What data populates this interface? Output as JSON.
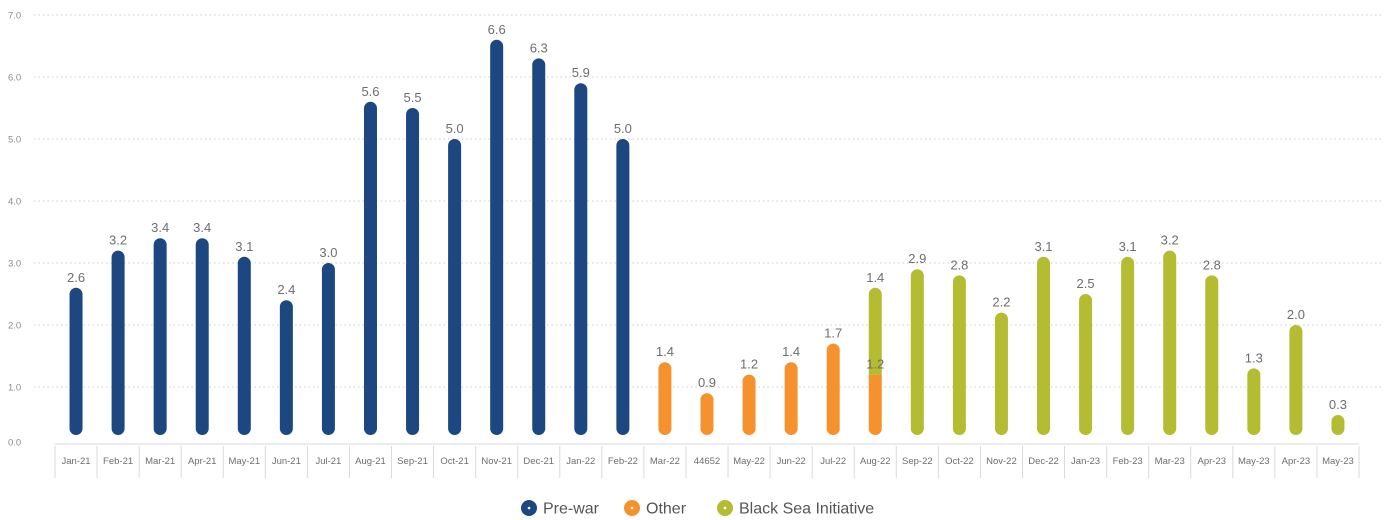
{
  "chart_data": {
    "type": "bar",
    "stacked": true,
    "categories": [
      "Jan-21",
      "Feb-21",
      "Mar-21",
      "Apr-21",
      "May-21",
      "Jun-21",
      "Jul-21",
      "Aug-21",
      "Sep-21",
      "Oct-21",
      "Nov-21",
      "Dec-21",
      "Jan-22",
      "Feb-22",
      "Mar-22",
      "44652",
      "May-22",
      "Jun-22",
      "Jul-22",
      "Aug-22",
      "Sep-22",
      "Oct-22",
      "Nov-22",
      "Dec-22",
      "Jan-23",
      "Feb-23",
      "Mar-23",
      "Apr-23",
      "May-23",
      "Apr-23",
      "May-23"
    ],
    "series": [
      {
        "name": "Pre-war",
        "color": "#1C4780",
        "values": [
          2.6,
          3.2,
          3.4,
          3.4,
          3.1,
          2.4,
          3.0,
          5.6,
          5.5,
          5.0,
          6.6,
          6.3,
          5.9,
          5.0,
          null,
          null,
          null,
          null,
          null,
          null,
          null,
          null,
          null,
          null,
          null,
          null,
          null,
          null,
          null,
          null,
          null
        ]
      },
      {
        "name": "Other",
        "color": "#F5922E",
        "values": [
          null,
          null,
          null,
          null,
          null,
          null,
          null,
          null,
          null,
          null,
          null,
          null,
          null,
          null,
          1.4,
          0.9,
          1.2,
          1.4,
          1.7,
          1.2,
          null,
          null,
          null,
          null,
          null,
          null,
          null,
          null,
          null,
          null,
          null
        ]
      },
      {
        "name": "Black Sea Initiative",
        "color": "#B4BC32",
        "values": [
          null,
          null,
          null,
          null,
          null,
          null,
          null,
          null,
          null,
          null,
          null,
          null,
          null,
          null,
          null,
          null,
          null,
          null,
          null,
          1.4,
          2.9,
          2.8,
          2.2,
          3.1,
          2.5,
          3.1,
          3.2,
          2.8,
          1.3,
          2.0,
          0.3
        ]
      }
    ],
    "ylim": [
      0,
      7
    ],
    "yticks": [
      "0.0",
      "1.0",
      "2.0",
      "3.0",
      "4.0",
      "5.0",
      "6.0",
      "7.0"
    ],
    "data_labels": true,
    "grid": true,
    "legend": "bottom"
  }
}
